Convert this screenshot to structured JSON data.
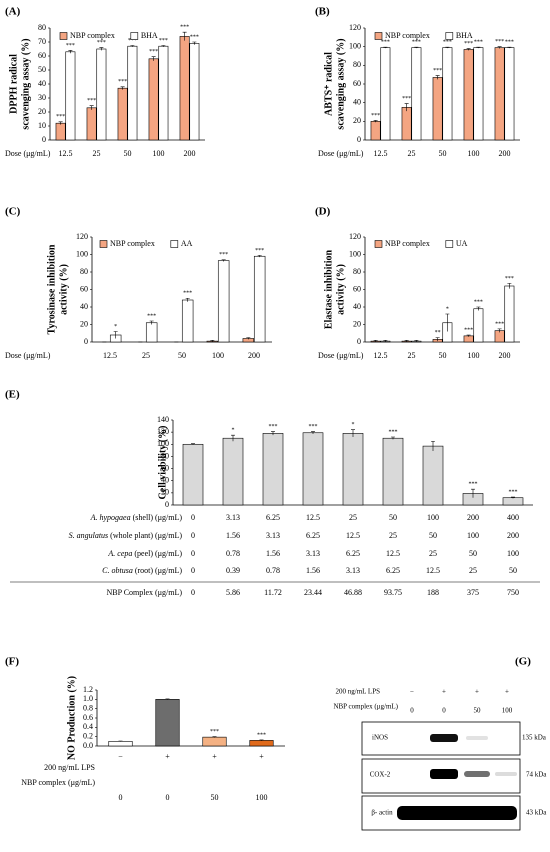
{
  "chart_data": [
    {
      "type": "bar",
      "panel_label": "(A)",
      "y_label": [
        "DPPH radical",
        "scavenging assay (%)"
      ],
      "x_label": "Dose (μg/mL)",
      "categories": [
        "12.5",
        "25",
        "50",
        "100",
        "200"
      ],
      "ylim": [
        0,
        80
      ],
      "yticks": [
        0,
        10,
        20,
        30,
        40,
        50,
        60,
        70,
        80
      ],
      "legend": "top-left",
      "series": [
        {
          "name": "NBP complex",
          "color": "#f4a582",
          "values": [
            12,
            23,
            37,
            58,
            74
          ],
          "errors": [
            1,
            1.5,
            1,
            1.5,
            3
          ],
          "annotations": [
            "***",
            "***",
            "***",
            "***",
            "***"
          ]
        },
        {
          "name": "BHA",
          "color": "#ffffff",
          "values": [
            63,
            65,
            67,
            67,
            69
          ],
          "errors": [
            1,
            1,
            0.5,
            0.5,
            1
          ],
          "annotations": [
            "***",
            "***",
            "***",
            "***",
            "***"
          ]
        }
      ]
    },
    {
      "type": "bar",
      "panel_label": "(B)",
      "y_label": [
        "ABTS⁺ radical",
        "scavenging assay (%)"
      ],
      "x_label": "Dose (μg/mL)",
      "categories": [
        "12.5",
        "25",
        "50",
        "100",
        "200"
      ],
      "ylim": [
        0,
        120
      ],
      "yticks": [
        0,
        20,
        40,
        60,
        80,
        100,
        120
      ],
      "legend": "top-left",
      "series": [
        {
          "name": "NBP complex",
          "color": "#f4a582",
          "values": [
            20,
            35,
            67,
            97,
            99
          ],
          "errors": [
            1,
            4,
            2,
            1,
            1
          ],
          "annotations": [
            "***",
            "***",
            "***",
            "***",
            "***"
          ]
        },
        {
          "name": "BHA",
          "color": "#ffffff",
          "values": [
            99,
            99,
            99,
            99,
            99
          ],
          "errors": [
            0.5,
            0.5,
            0.5,
            0.5,
            0.5
          ],
          "annotations": [
            "***",
            "***",
            "***",
            "***",
            "***"
          ]
        }
      ]
    },
    {
      "type": "bar",
      "panel_label": "(C)",
      "y_label": [
        "Tyrosinase inhibition",
        "activity (%)"
      ],
      "x_label": "Dose (μg/mL)",
      "categories": [
        "12.5",
        "25",
        "50",
        "100",
        "200"
      ],
      "ylim": [
        0,
        120
      ],
      "yticks": [
        0,
        20,
        40,
        60,
        80,
        100,
        120
      ],
      "legend": "top-left",
      "series": [
        {
          "name": "NBP complex",
          "color": "#f4a582",
          "values": [
            0,
            0,
            0,
            1,
            4
          ],
          "errors": [
            0,
            0,
            0,
            1,
            1
          ],
          "annotations": [
            null,
            null,
            null,
            null,
            null
          ]
        },
        {
          "name": "AA",
          "color": "#ffffff",
          "values": [
            8,
            22,
            48,
            93,
            98
          ],
          "errors": [
            4,
            2,
            2,
            1,
            1
          ],
          "annotations": [
            "*",
            "***",
            "***",
            "***",
            "***"
          ]
        }
      ]
    },
    {
      "type": "bar",
      "panel_label": "(D)",
      "y_label": [
        "Elastase inhibition",
        "activity (%)"
      ],
      "x_label": "Dose (μg/mL)",
      "categories": [
        "12.5",
        "25",
        "50",
        "100",
        "200"
      ],
      "ylim": [
        0,
        120
      ],
      "yticks": [
        0,
        20,
        40,
        60,
        80,
        100,
        120
      ],
      "legend": "top-left",
      "series": [
        {
          "name": "NBP complex",
          "color": "#f4a582",
          "values": [
            1,
            1,
            3,
            7,
            13
          ],
          "errors": [
            1,
            1,
            2,
            1,
            2
          ],
          "annotations": [
            null,
            null,
            "**",
            "***",
            "***"
          ]
        },
        {
          "name": "UA",
          "color": "#ffffff",
          "values": [
            1,
            1,
            22,
            38,
            64
          ],
          "errors": [
            1,
            1,
            10,
            2,
            3
          ],
          "annotations": [
            null,
            null,
            "*",
            "***",
            "***"
          ]
        }
      ]
    },
    {
      "type": "bar",
      "panel_label": "(E)",
      "y_label": [
        "Cell viability (%)"
      ],
      "ylim": [
        0,
        140
      ],
      "yticks": [
        0,
        20,
        40,
        60,
        80,
        100,
        120,
        140
      ],
      "color": "#d9d9d9",
      "values": [
        100,
        110,
        118,
        119,
        118,
        110,
        97,
        19,
        12
      ],
      "errors": [
        1,
        5,
        3,
        2,
        6,
        2,
        8,
        7,
        1
      ],
      "annotations": [
        null,
        "*",
        "***",
        "***",
        "*",
        "***",
        null,
        "***",
        "***"
      ],
      "table": {
        "rows": [
          {
            "species": "A. hypogaea",
            "detail": " (shell) (μg/mL)",
            "values": [
              0,
              3.13,
              6.25,
              12.5,
              25,
              50,
              100,
              200,
              400
            ]
          },
          {
            "species": "S. angulatus",
            "detail": " (whole plant) (μg/mL)",
            "values": [
              0,
              1.56,
              3.13,
              6.25,
              12.5,
              25,
              50,
              100,
              200
            ]
          },
          {
            "species": "A. cepa",
            "detail": " (peel) (μg/mL)",
            "values": [
              0,
              0.78,
              1.56,
              3.13,
              6.25,
              12.5,
              25,
              50,
              100
            ]
          },
          {
            "species": "C. obtusa",
            "detail": " (root) (μg/mL)",
            "values": [
              0,
              0.39,
              0.78,
              1.56,
              3.13,
              6.25,
              12.5,
              25,
              50
            ]
          },
          {
            "species": null,
            "detail": "NBP Complex (μg/mL)",
            "values": [
              0,
              5.86,
              11.72,
              23.44,
              46.88,
              93.75,
              188,
              375,
              750
            ]
          }
        ]
      }
    },
    {
      "type": "bar",
      "panel_label": "(F)",
      "y_label": [
        "NO Production (%)"
      ],
      "ylim": [
        0,
        1.2
      ],
      "yticks": [
        {
          "value": 0,
          "label": "0.0"
        },
        0.2,
        0.4,
        0.6,
        0.8,
        {
          "value": 1,
          "label": "1.0"
        },
        1.2
      ],
      "colors": [
        "#ffffff",
        "#6d6d6d",
        "#f4b183",
        "#e06a1b"
      ],
      "values": [
        0.1,
        1.0,
        0.19,
        0.12
      ],
      "errors": [
        0.005,
        0.01,
        0.01,
        0.01
      ],
      "annotations": [
        null,
        null,
        "***",
        "***"
      ],
      "table": {
        "rows": [
          {
            "label": "200 ng/mL LPS",
            "values": [
              "−",
              "+",
              "+",
              "+"
            ]
          },
          {
            "label": "NBP complex (μg/mL)",
            "values": [
              0,
              0,
              50,
              100
            ]
          }
        ]
      }
    }
  ],
  "blot": {
    "panel_label": "(G)",
    "conditions": [
      {
        "label": "200 ng/mL LPS",
        "values": [
          "−",
          "+",
          "+",
          "+"
        ]
      },
      {
        "label": "NBP complex (μg/mL)",
        "values": [
          0,
          0,
          50,
          100
        ]
      }
    ],
    "bands": [
      {
        "name": "iNOS",
        "size": "135 kDa"
      },
      {
        "name": "COX-2",
        "size": "74 kDa"
      },
      {
        "name": "β- actin",
        "size": "43 kDa"
      }
    ]
  }
}
